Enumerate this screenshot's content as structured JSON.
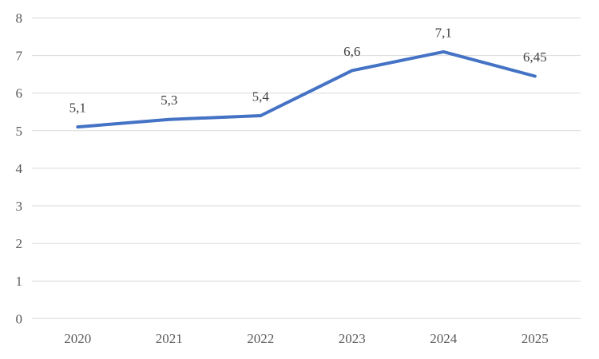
{
  "chart_data": {
    "type": "line",
    "title": "",
    "xlabel": "",
    "ylabel": "",
    "categories": [
      "2020",
      "2021",
      "2022",
      "2023",
      "2024",
      "2025"
    ],
    "values": [
      5.1,
      5.3,
      5.4,
      6.6,
      7.1,
      6.45
    ],
    "data_labels": [
      "5,1",
      "5,3",
      "5,4",
      "6,6",
      "7,1",
      "6,45"
    ],
    "y_ticks": [
      "0",
      "1",
      "2",
      "3",
      "4",
      "5",
      "6",
      "7",
      "8"
    ],
    "ylim": [
      0,
      8
    ],
    "grid": true,
    "legend": false,
    "decimal_separator": ","
  },
  "colors": {
    "line": "#4472C4",
    "gridline": "#D9D9D9",
    "axis_text": "#595959",
    "data_label_text": "#404040",
    "background": "#FFFFFF"
  }
}
